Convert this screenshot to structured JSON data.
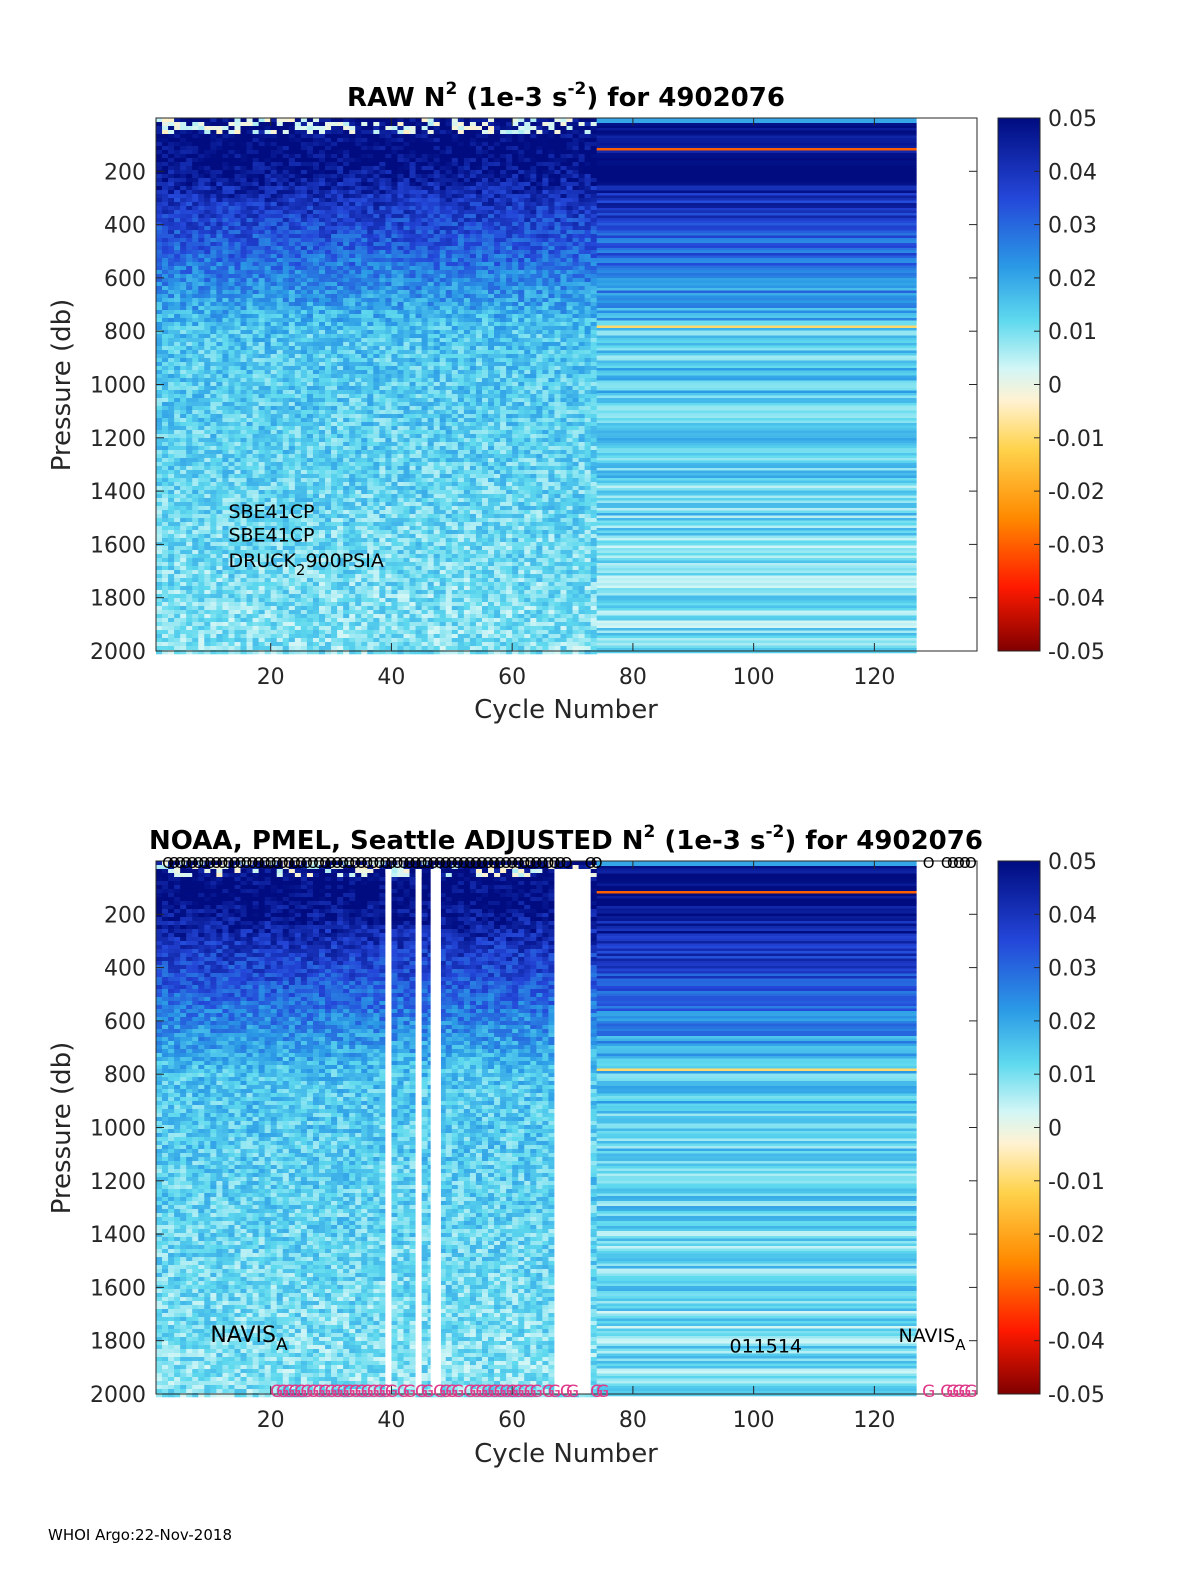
{
  "footer": "WHOI Argo:22-Nov-2018",
  "chart_data": [
    {
      "type": "heatmap",
      "panel": "raw",
      "title": "RAW N",
      "title_sup": "2",
      "title_mid": " (1e-3 s",
      "title_sup2": "-2",
      "title_end": ") for 4902076",
      "xlabel": "Cycle Number",
      "ylabel": "Pressure (db)",
      "xlim": [
        1,
        137
      ],
      "ylim": [
        2000,
        0
      ],
      "xticks": [
        20,
        40,
        60,
        80,
        100,
        120
      ],
      "yticks": [
        200,
        400,
        600,
        800,
        1000,
        1200,
        1400,
        1600,
        1800,
        2000
      ],
      "data_xrange": [
        1,
        127
      ],
      "colorbar": {
        "min": -0.05,
        "max": 0.05,
        "ticks": [
          "0.05",
          "0.04",
          "0.03",
          "0.02",
          "0.01",
          "0",
          "-0.01",
          "-0.02",
          "-0.03",
          "-0.04",
          "-0.05"
        ]
      },
      "annotations": [
        {
          "text": "SBE41CP",
          "x": 13,
          "y": 1500
        },
        {
          "text": "SBE41CP",
          "x": 13,
          "y": 1590
        },
        {
          "text": "DRUCK",
          "sub": "2",
          "end": "900PSIA",
          "x": 13,
          "y": 1685
        }
      ],
      "gaps": [],
      "qc_top": [],
      "qc_bottom": []
    },
    {
      "type": "heatmap",
      "panel": "adjusted",
      "title": "NOAA, PMEL, Seattle  ADJUSTED N",
      "title_sup": "2",
      "title_mid": " (1e-3 s",
      "title_sup2": "-2",
      "title_end": ") for 4902076",
      "xlabel": "Cycle Number",
      "ylabel": "Pressure (db)",
      "xlim": [
        1,
        137
      ],
      "ylim": [
        2000,
        0
      ],
      "xticks": [
        20,
        40,
        60,
        80,
        100,
        120
      ],
      "yticks": [
        200,
        400,
        600,
        800,
        1000,
        1200,
        1400,
        1600,
        1800,
        2000
      ],
      "data_xrange": [
        1,
        127
      ],
      "colorbar": {
        "min": -0.05,
        "max": 0.05,
        "ticks": [
          "0.05",
          "0.04",
          "0.03",
          "0.02",
          "0.01",
          "0",
          "-0.01",
          "-0.02",
          "-0.03",
          "-0.04",
          "-0.05"
        ]
      },
      "annotations": [
        {
          "text": "NAVIS",
          "sub": "A",
          "x": 10,
          "y": 1805,
          "large": true
        },
        {
          "text": "011514",
          "x": 96,
          "y": 1845
        },
        {
          "text": "NAVIS",
          "sub": "A",
          "x": 124,
          "y": 1805
        }
      ],
      "gaps": [
        [
          39,
          40
        ],
        [
          44,
          45
        ],
        [
          46.5,
          48.2
        ],
        [
          67,
          73
        ]
      ],
      "qc_top": [
        3,
        4,
        5,
        6,
        7,
        8,
        9,
        10,
        11,
        12,
        13,
        14,
        15,
        16,
        17,
        18,
        19,
        20,
        21,
        22,
        23,
        24,
        25,
        26,
        27,
        28,
        29,
        30,
        31,
        32,
        33,
        34,
        35,
        36,
        37,
        38,
        39,
        40,
        41,
        42,
        43,
        44,
        45,
        46,
        47,
        48,
        49,
        50,
        51,
        52,
        53,
        54,
        55,
        56,
        57,
        58,
        59,
        60,
        61,
        62,
        63,
        64,
        65,
        66,
        67,
        68,
        69,
        73,
        74,
        129,
        132,
        133,
        134,
        135,
        136
      ],
      "qc_bottom": [
        21,
        22,
        23,
        24,
        25,
        26,
        27,
        28,
        29,
        30,
        31,
        32,
        33,
        34,
        35,
        36,
        37,
        38,
        39,
        40,
        42,
        43,
        45,
        46,
        48,
        49,
        50,
        51,
        53,
        54,
        55,
        56,
        57,
        58,
        59,
        60,
        61,
        62,
        63,
        64,
        66,
        67,
        69,
        70,
        74,
        75,
        129,
        132,
        133,
        134,
        135,
        136
      ]
    }
  ]
}
